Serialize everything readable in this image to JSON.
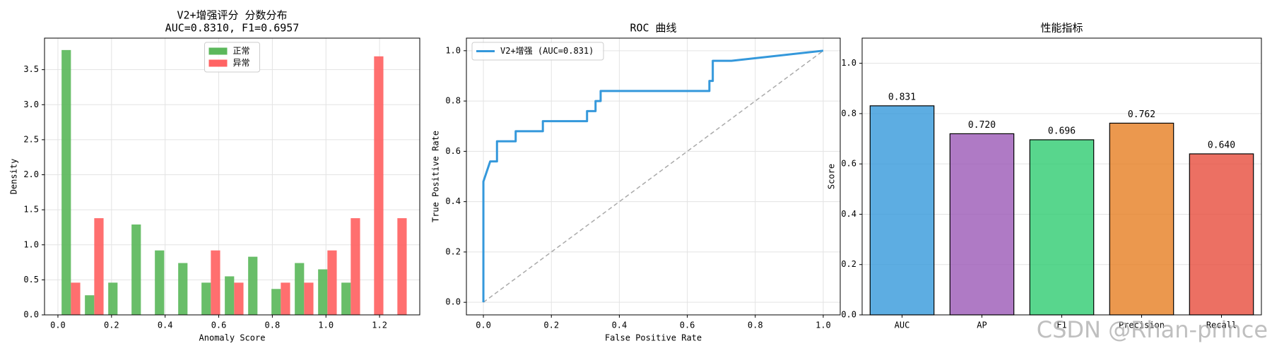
{
  "chart_data": [
    {
      "type": "histogram",
      "title": "V2+增强评分 分数分布",
      "subtitle": "AUC=0.8310, F1=0.6957",
      "x_label": "Anomaly Score",
      "y_label": "Density",
      "bins": [
        0.005,
        0.092,
        0.179,
        0.266,
        0.353,
        0.44,
        0.527,
        0.614,
        0.701,
        0.788,
        0.875,
        0.962,
        1.049,
        1.136,
        1.223,
        1.31
      ],
      "series": [
        {
          "name": "正常",
          "color": "#5cb85c",
          "values": [
            3.78,
            0.28,
            0.46,
            1.29,
            0.92,
            0.74,
            0.46,
            0.55,
            0.83,
            0.37,
            0.74,
            0.65,
            0.46,
            0,
            0
          ]
        },
        {
          "name": "异常",
          "color": "#ff6363",
          "values": [
            0.46,
            1.38,
            0,
            0,
            0,
            0,
            0.92,
            0.46,
            0,
            0.46,
            0.46,
            0.92,
            1.38,
            3.69,
            1.38
          ]
        }
      ],
      "xlim": [
        -0.05,
        1.35
      ],
      "ylim": [
        0,
        3.95
      ],
      "xticks": [
        {
          "value": 0,
          "label": "0.0"
        },
        0.2,
        0.4,
        0.6,
        0.8,
        {
          "value": 1,
          "label": "1.0"
        },
        1.2
      ],
      "yticks": [
        {
          "value": 0,
          "label": "0.0"
        },
        0.5,
        {
          "value": 1,
          "label": "1.0"
        },
        1.5,
        {
          "value": 2,
          "label": "2.0"
        },
        2.5,
        {
          "value": 3,
          "label": "3.0"
        },
        3.5
      ],
      "grid": "both",
      "legend": "upper center"
    },
    {
      "type": "line",
      "title": "ROC 曲线",
      "x_label": "False Positive Rate",
      "y_label": "True Positive Rate",
      "series": [
        {
          "name": "V2+增强 (AUC=0.831)",
          "color": "#3498db",
          "x": [
            0,
            0,
            0.02,
            0.04,
            0.04,
            0.095,
            0.095,
            0.175,
            0.175,
            0.305,
            0.305,
            0.33,
            0.33,
            0.345,
            0.345,
            0.665,
            0.665,
            0.675,
            0.675,
            0.73,
            1
          ],
          "values": [
            0,
            0.48,
            0.56,
            0.56,
            0.64,
            0.64,
            0.68,
            0.68,
            0.72,
            0.72,
            0.76,
            0.76,
            0.8,
            0.8,
            0.84,
            0.84,
            0.88,
            0.88,
            0.96,
            0.96,
            1
          ]
        }
      ],
      "reference_line": {
        "x": [
          0,
          1
        ],
        "values": [
          0,
          1
        ],
        "color": "#aaaaaa"
      },
      "xlim": [
        -0.05,
        1.05
      ],
      "ylim": [
        -0.05,
        1.05
      ],
      "xticks": [
        {
          "value": 0,
          "label": "0.0"
        },
        0.2,
        0.4,
        0.6,
        0.8,
        {
          "value": 1,
          "label": "1.0"
        }
      ],
      "yticks": [
        {
          "value": 0,
          "label": "0.0"
        },
        0.2,
        0.4,
        0.6,
        0.8,
        {
          "value": 1,
          "label": "1.0"
        }
      ],
      "grid": "both",
      "legend": "upper left"
    },
    {
      "type": "bar",
      "title": "性能指标",
      "y_label": "Score",
      "categories": [
        "AUC",
        "AP",
        "F1",
        "Precision",
        "Recall"
      ],
      "values": [
        0.831,
        0.72,
        0.696,
        0.762,
        0.64
      ],
      "value_labels": [
        "0.831",
        "0.720",
        "0.696",
        "0.762",
        "0.640"
      ],
      "colors": [
        "#3498db",
        "#9b59b6",
        "#2ecc71",
        "#e67e22",
        "#e74c3c"
      ],
      "ylim": [
        0,
        1.1
      ],
      "yticks": [
        {
          "value": 0,
          "label": "0.0"
        },
        0.2,
        0.4,
        0.6,
        0.8,
        {
          "value": 1,
          "label": "1.0"
        }
      ],
      "grid": "y"
    }
  ],
  "watermark": "CSDN @Rhan-prince"
}
